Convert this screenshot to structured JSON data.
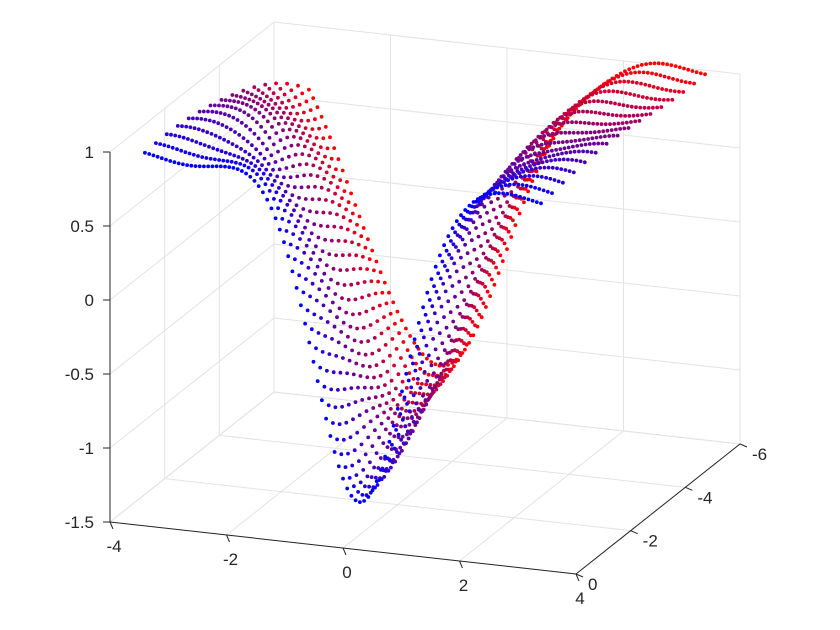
{
  "chart_data": {
    "type": "scatter3d",
    "title": "",
    "xlabel": "",
    "ylabel": "",
    "zlabel": "",
    "xlim": [
      -4,
      4
    ],
    "ylim": [
      -6,
      0
    ],
    "zlim": [
      -1.5,
      1
    ],
    "x_ticks": [
      {
        "value": -4,
        "label": "-4"
      },
      {
        "value": -2,
        "label": "-2"
      },
      {
        "value": 0,
        "label": "0"
      },
      {
        "value": 2,
        "label": "2"
      },
      {
        "value": 4,
        "label": "4"
      }
    ],
    "y_ticks": [
      {
        "value": 0,
        "label": "0"
      },
      {
        "value": -2,
        "label": "-2"
      },
      {
        "value": -4,
        "label": "-4"
      },
      {
        "value": -6,
        "label": "-6"
      }
    ],
    "z_ticks": [
      {
        "value": 1,
        "label": "1"
      },
      {
        "value": 0.5,
        "label": "0.5"
      },
      {
        "value": 0,
        "label": "0"
      },
      {
        "value": -0.5,
        "label": "-0.5"
      },
      {
        "value": -1,
        "label": "-1"
      },
      {
        "value": -1.5,
        "label": "-1.5"
      }
    ],
    "grid": true,
    "surface": {
      "description_of_values": "z = 1 - 2.2*exp(-((x - c(y))^2)/(2*w^2)), c(y) = 0.25*y + 0.3, w = 0.75 + 0.08*|y|",
      "x_range": [
        -3.4,
        3.4
      ],
      "y_range": [
        -6,
        0
      ],
      "n_lines": 16,
      "points_per_line": 95,
      "trough_min_z": -1.2
    },
    "color_gradient": [
      "#0000ff",
      "#ff0000"
    ],
    "tick_color": "#262626",
    "grid_color": "#e3e3e3",
    "axis_color": "#262626"
  }
}
